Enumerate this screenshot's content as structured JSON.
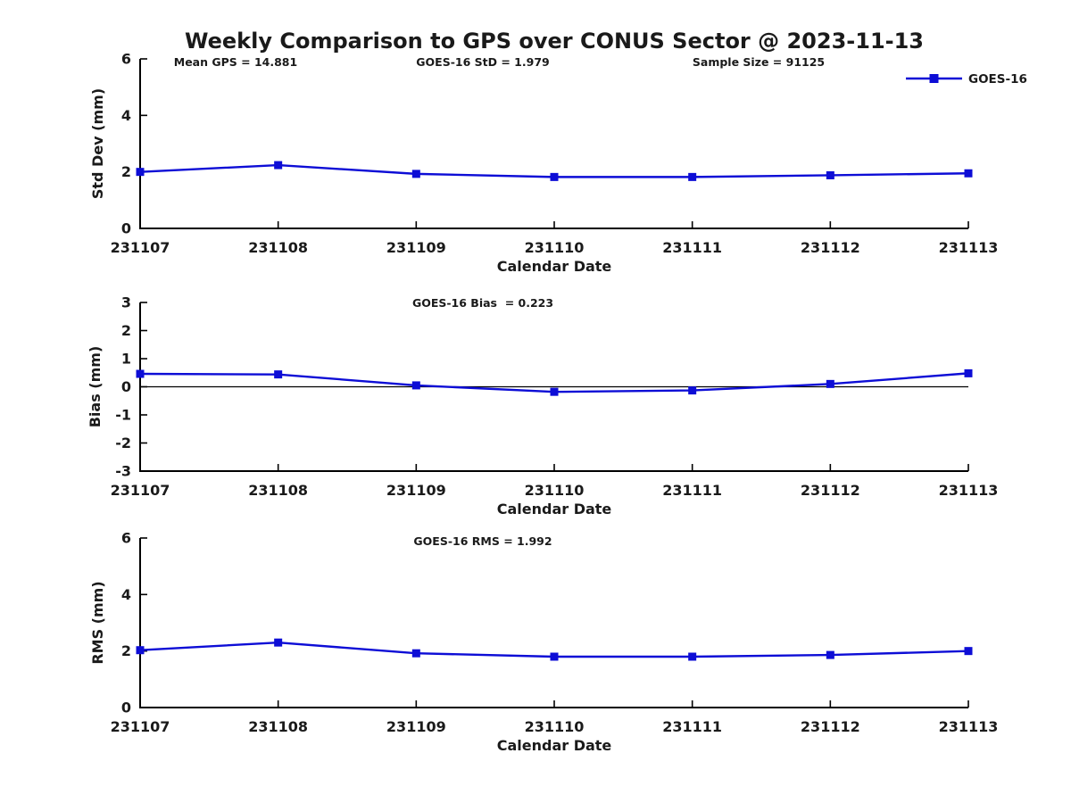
{
  "figure": {
    "title": "Weekly Comparison to GPS over CONUS Sector @ 2023-11-13"
  },
  "annotations": {
    "mean_gps": "Mean GPS = 14.881",
    "goes16_std": "GOES-16 StD = 1.979",
    "sample_size": "Sample Size = 91125"
  },
  "legend": {
    "label": "GOES-16",
    "position": "top-right"
  },
  "colors": {
    "series": "#0d0dd6",
    "text": "#1a1a1a",
    "axis": "#000000",
    "zero_line": "#000000",
    "background": "#ffffff"
  },
  "chart_data": [
    {
      "type": "line",
      "title": "",
      "xlabel": "Calendar Date",
      "ylabel": "Std Dev (mm)",
      "categories": [
        "231107",
        "231108",
        "231109",
        "231110",
        "231111",
        "231112",
        "231113"
      ],
      "series": [
        {
          "name": "GOES-16",
          "values": [
            2.0,
            2.24,
            1.93,
            1.82,
            1.82,
            1.88,
            1.95
          ]
        }
      ],
      "ylim": [
        0,
        6
      ],
      "yticks": [
        0,
        2,
        4,
        6
      ],
      "zero_line": false,
      "grid": false,
      "marker": "square"
    },
    {
      "type": "line",
      "title": "GOES-16 Bias  = 0.223",
      "xlabel": "Calendar Date",
      "ylabel": "Bias (mm)",
      "categories": [
        "231107",
        "231108",
        "231109",
        "231110",
        "231111",
        "231112",
        "231113"
      ],
      "series": [
        {
          "name": "GOES-16",
          "values": [
            0.46,
            0.44,
            0.05,
            -0.18,
            -0.13,
            0.1,
            0.48
          ]
        }
      ],
      "ylim": [
        -3,
        3
      ],
      "yticks": [
        -3,
        -2,
        -1,
        0,
        1,
        2,
        3
      ],
      "zero_line": true,
      "grid": false,
      "marker": "square"
    },
    {
      "type": "line",
      "title": "GOES-16 RMS = 1.992",
      "xlabel": "Calendar Date",
      "ylabel": "RMS (mm)",
      "categories": [
        "231107",
        "231108",
        "231109",
        "231110",
        "231111",
        "231112",
        "231113"
      ],
      "series": [
        {
          "name": "GOES-16",
          "values": [
            2.03,
            2.3,
            1.92,
            1.8,
            1.8,
            1.86,
            2.0
          ]
        }
      ],
      "ylim": [
        0,
        6
      ],
      "yticks": [
        0,
        2,
        4,
        6
      ],
      "zero_line": false,
      "grid": false,
      "marker": "square"
    }
  ]
}
